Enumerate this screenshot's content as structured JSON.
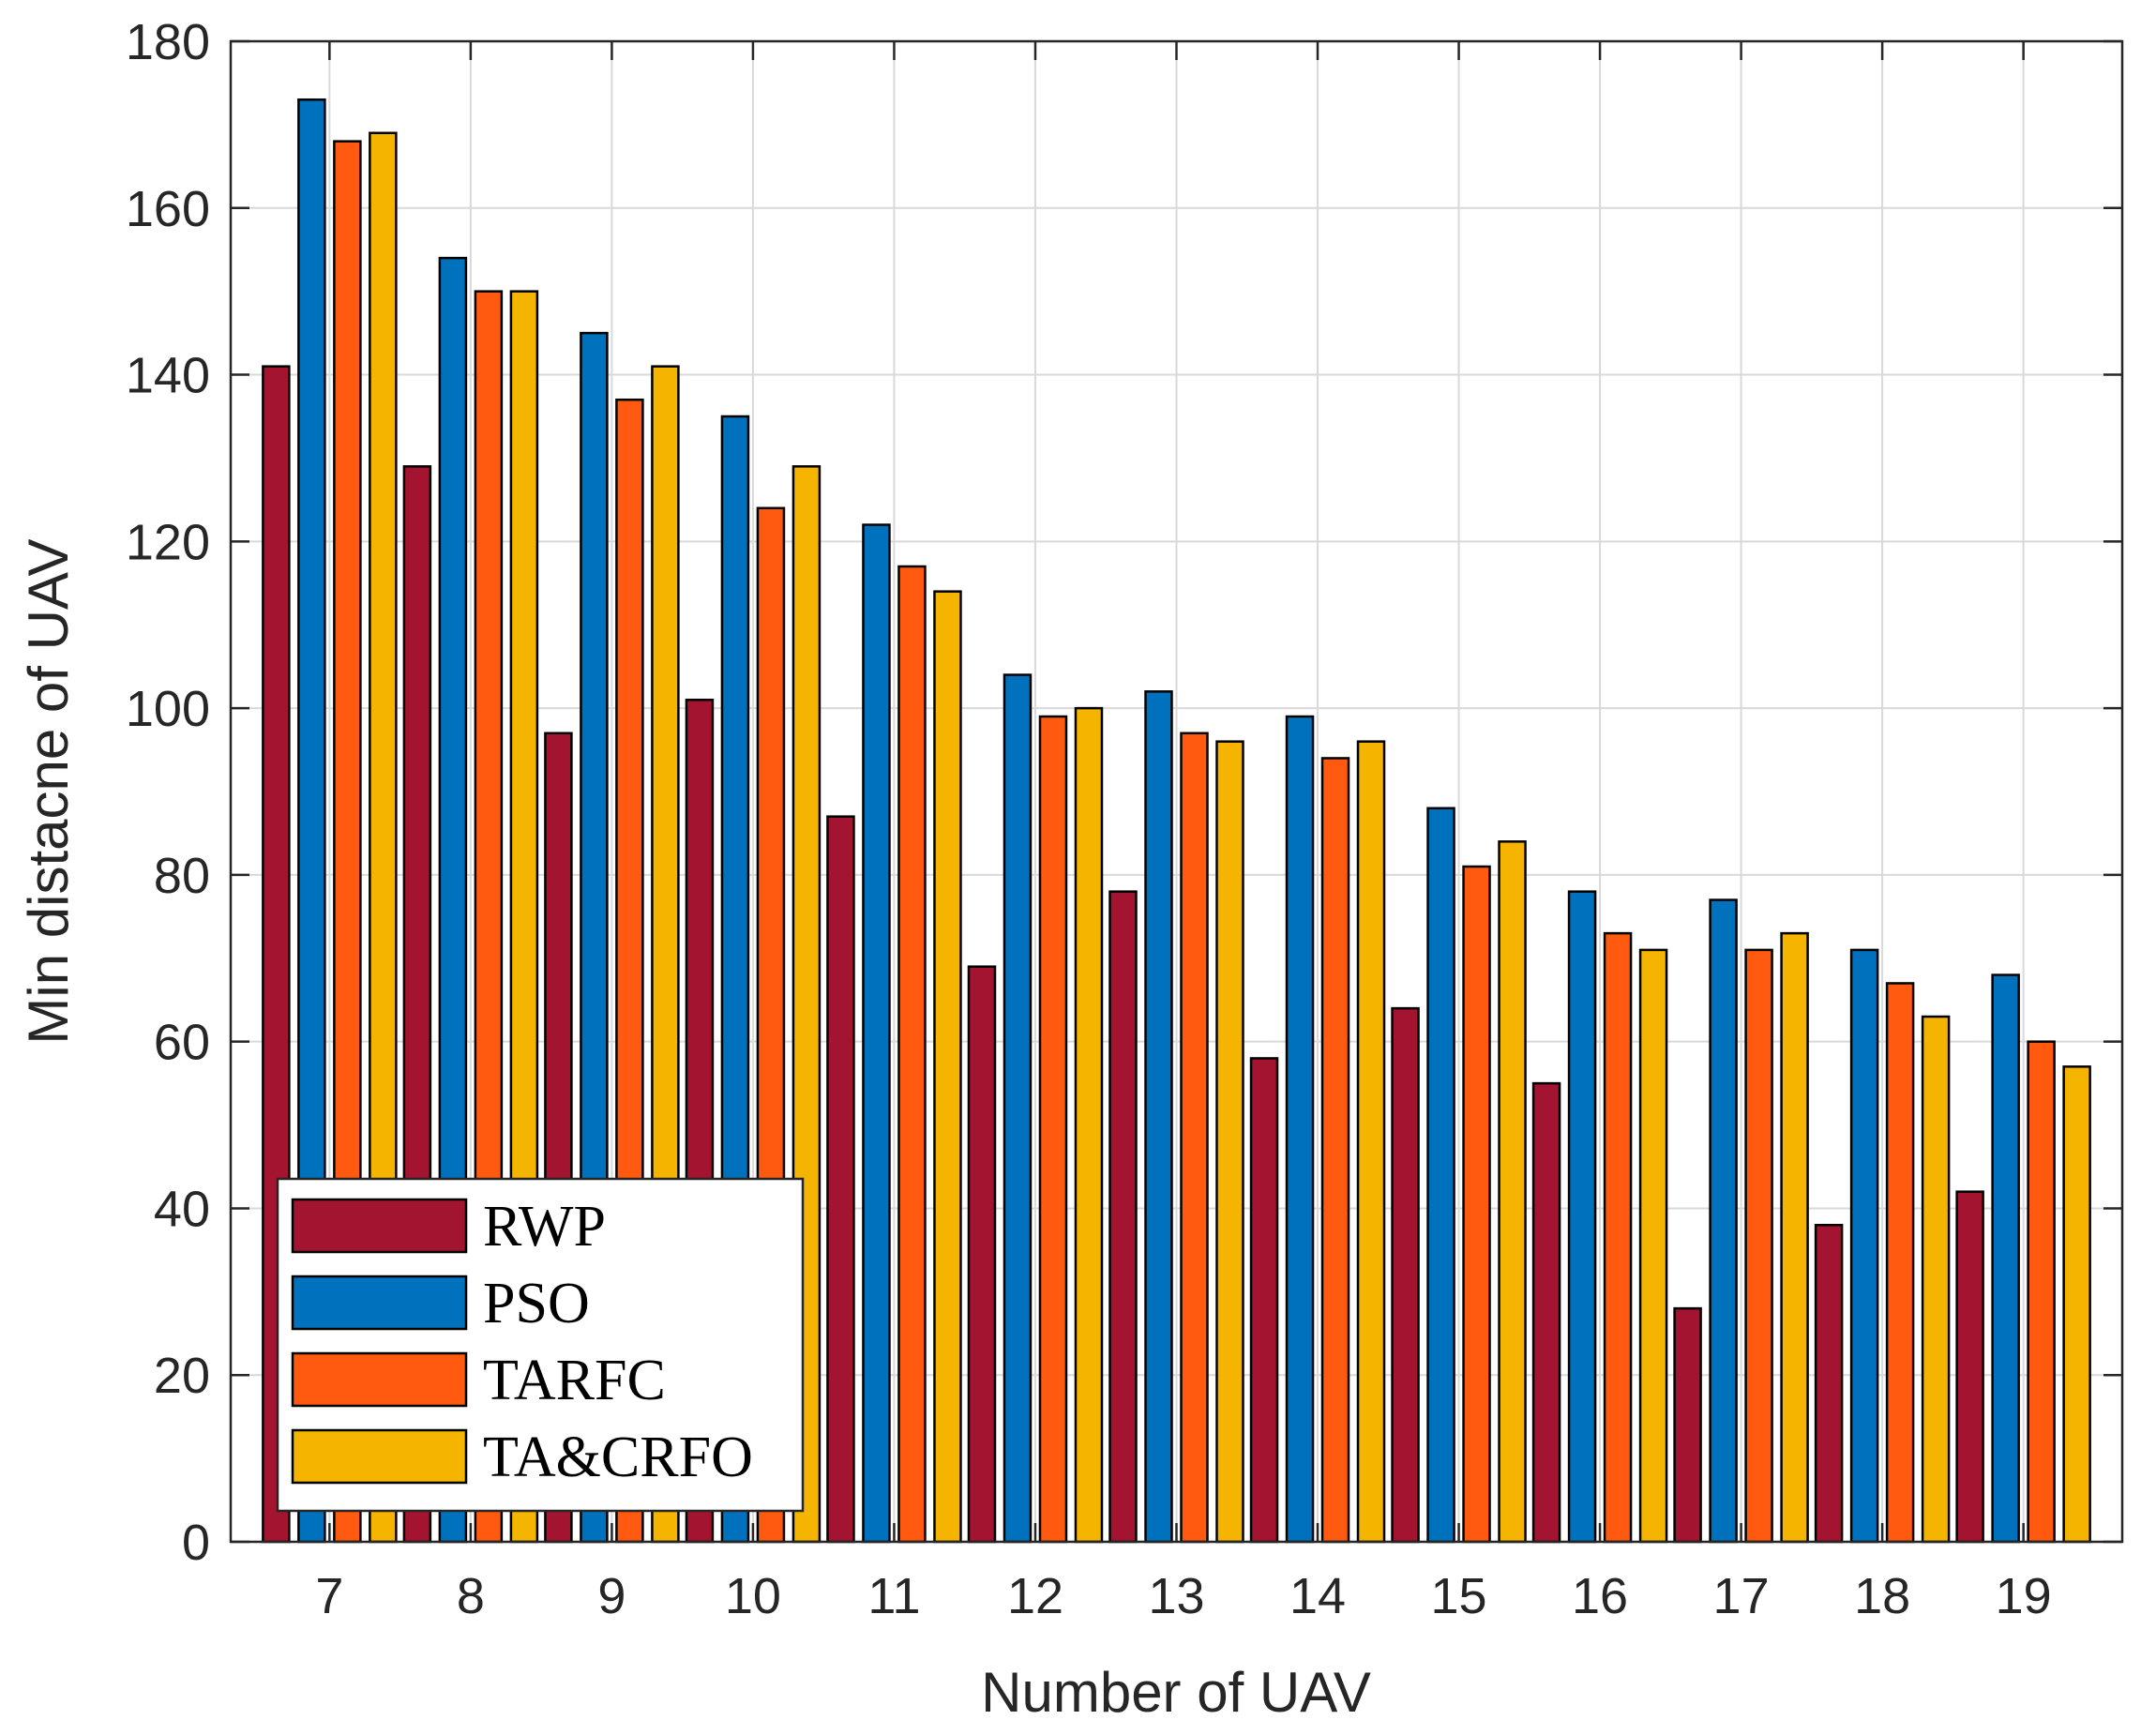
{
  "chart_data": {
    "type": "bar",
    "title": "",
    "xlabel": "Number of UAV",
    "ylabel": "Min distacne of UAV",
    "categories": [
      "7",
      "8",
      "9",
      "10",
      "11",
      "12",
      "13",
      "14",
      "15",
      "16",
      "17",
      "18",
      "19"
    ],
    "ylim": [
      0,
      180
    ],
    "yticks": [
      "0",
      "20",
      "40",
      "60",
      "80",
      "100",
      "120",
      "140",
      "160",
      "180"
    ],
    "grid": true,
    "legend_position": "bottom-left",
    "series": [
      {
        "name": "RWP",
        "color": "#A2142F",
        "values": [
          141,
          129,
          97,
          101,
          87,
          69,
          78,
          58,
          64,
          55,
          28,
          38,
          42
        ]
      },
      {
        "name": "PSO",
        "color": "#0072BD",
        "values": [
          173,
          154,
          145,
          135,
          122,
          104,
          102,
          99,
          88,
          78,
          77,
          71,
          68
        ]
      },
      {
        "name": "TARFC",
        "color": "#FF5A0F",
        "values": [
          168,
          150,
          137,
          124,
          117,
          99,
          97,
          94,
          81,
          73,
          71,
          67,
          60
        ]
      },
      {
        "name": "TA&CRFO",
        "color": "#F4B400",
        "values": [
          169,
          150,
          141,
          129,
          114,
          100,
          96,
          96,
          84,
          71,
          73,
          63,
          57
        ]
      }
    ]
  }
}
